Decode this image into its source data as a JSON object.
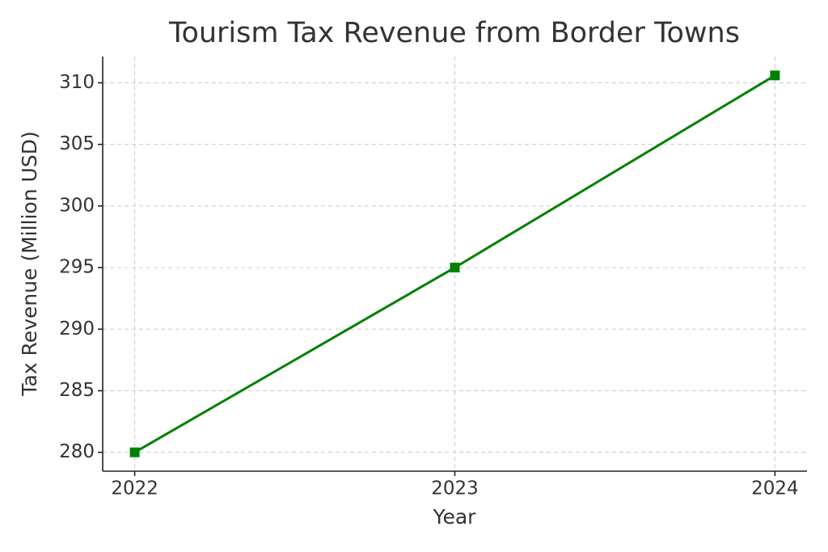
{
  "chart_data": {
    "type": "line",
    "title": "Tourism Tax Revenue from Border Towns",
    "x_label": "Year",
    "y_label": "Tax Revenue (Million USD)",
    "x": [
      2022,
      2023,
      2024
    ],
    "series": [
      {
        "name": "Tax Revenue",
        "color": "#008000",
        "values": [
          280,
          295,
          310.6
        ]
      }
    ],
    "xlim": [
      2021.9,
      2024.1
    ],
    "xticks": [
      2022,
      2023,
      2024
    ],
    "ylim": [
      278.47,
      312.13
    ],
    "yticks": [
      280,
      285,
      290,
      295,
      300,
      305,
      310
    ],
    "grid": true
  }
}
